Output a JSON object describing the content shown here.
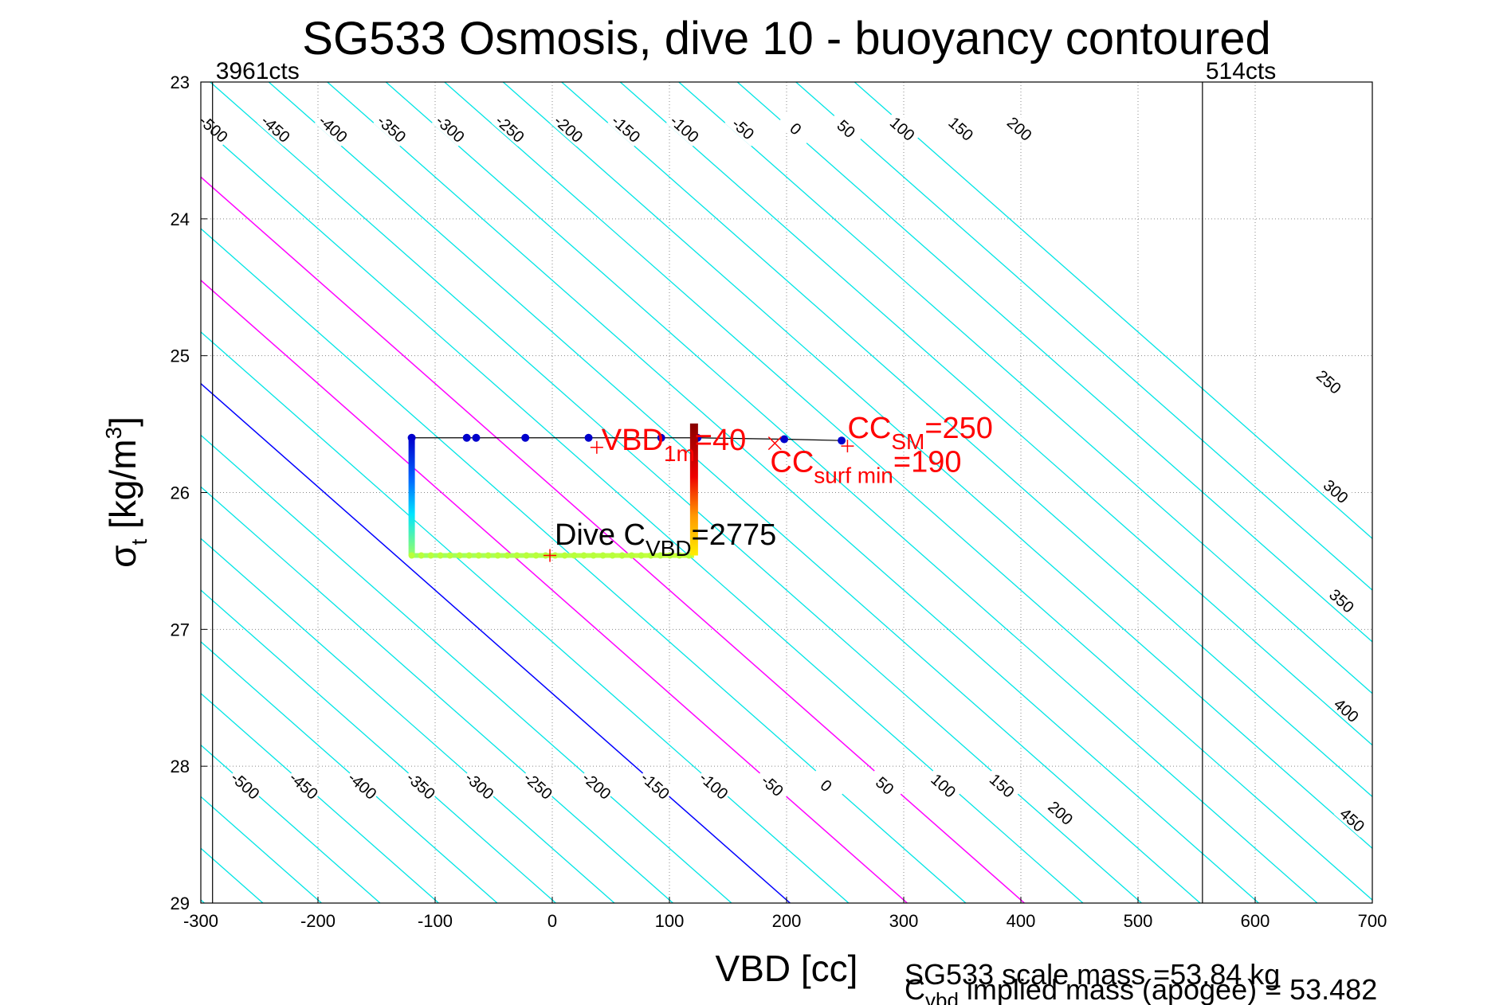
{
  "chart_data": {
    "type": "line",
    "title": "SG533 Osmosis, dive 10 - buoyancy contoured",
    "xlabel": "VBD [cc]",
    "ylabel": {
      "main": "σ",
      "sub": "t",
      "rest": " [kg/m",
      "sup": "3",
      "close": "]"
    },
    "xlim": [
      -300,
      700
    ],
    "ylim": [
      23,
      29
    ],
    "y_reversed": true,
    "grid": true,
    "x_ticks": [
      -300,
      -200,
      -100,
      0,
      100,
      200,
      300,
      400,
      500,
      600,
      700
    ],
    "y_ticks": [
      23,
      24,
      25,
      26,
      27,
      28,
      29
    ],
    "count_markers": [
      {
        "x": -290,
        "label": "3961cts"
      },
      {
        "x": 555,
        "label": "514cts"
      }
    ],
    "contours": {
      "slope_cc_per_sigma": 132.5,
      "zero_vbd_at_sigma_29": 203,
      "levels": [
        -500,
        -450,
        -400,
        -350,
        -300,
        -250,
        -200,
        -150,
        -100,
        -50,
        0,
        50,
        100,
        150,
        200,
        250,
        300,
        350,
        400,
        450
      ],
      "color_default": "#00e5e5",
      "color_zero": "#0000ff",
      "color_magenta": "#ff00ff",
      "magenta_levels": [
        100,
        200
      ],
      "top_labels": [
        {
          "level": -500,
          "vbd": -290
        },
        {
          "level": -450,
          "vbd": -237
        },
        {
          "level": -400,
          "vbd": -188
        },
        {
          "level": -350,
          "vbd": -138
        },
        {
          "level": -300,
          "vbd": -88
        },
        {
          "level": -250,
          "vbd": -37
        },
        {
          "level": -200,
          "vbd": 13
        },
        {
          "level": -150,
          "vbd": 62
        },
        {
          "level": -100,
          "vbd": 112
        },
        {
          "level": -50,
          "vbd": 162
        },
        {
          "level": 0,
          "vbd": 207
        },
        {
          "level": 50,
          "vbd": 250
        },
        {
          "level": 100,
          "vbd": 298
        },
        {
          "level": 150,
          "vbd": 348
        },
        {
          "level": 200,
          "vbd": 398
        }
      ],
      "top_sigma": 23.35,
      "bottom_labels": [
        {
          "level": -500,
          "vbd": -263
        },
        {
          "level": -450,
          "vbd": -213
        },
        {
          "level": -400,
          "vbd": -163
        },
        {
          "level": -350,
          "vbd": -113
        },
        {
          "level": -300,
          "vbd": -63
        },
        {
          "level": -250,
          "vbd": -13
        },
        {
          "level": -200,
          "vbd": 37
        },
        {
          "level": -150,
          "vbd": 87
        },
        {
          "level": -100,
          "vbd": 137
        },
        {
          "level": -50,
          "vbd": 187
        },
        {
          "level": 0,
          "vbd": 233
        },
        {
          "level": 50,
          "vbd": 283
        },
        {
          "level": 100,
          "vbd": 333
        },
        {
          "level": 150,
          "vbd": 383
        }
      ],
      "bottom_sigma": 28.15,
      "extra_labels": [
        {
          "level": 200,
          "vbd": 433,
          "sigma": 28.35
        },
        {
          "level": 250,
          "vbd": 662,
          "sigma": 25.2
        },
        {
          "level": 300,
          "vbd": 668,
          "sigma": 26.0
        },
        {
          "level": 350,
          "vbd": 673,
          "sigma": 26.8
        },
        {
          "level": 400,
          "vbd": 677,
          "sigma": 27.6
        },
        {
          "level": 450,
          "vbd": 682,
          "sigma": 28.4
        }
      ]
    },
    "series": [
      {
        "name": "surface",
        "color": "#000000",
        "points": [
          [
            -120,
            25.6
          ],
          [
            -73,
            25.6
          ],
          [
            -65,
            25.6
          ],
          [
            -23,
            25.6
          ],
          [
            31,
            25.6
          ],
          [
            93,
            25.6
          ],
          [
            124,
            25.6
          ],
          [
            198,
            25.61
          ],
          [
            247,
            25.62
          ]
        ],
        "marker_color": "#0000cc"
      },
      {
        "name": "descent",
        "color": "#000000",
        "points": [
          [
            -120,
            25.6
          ],
          [
            -120,
            26.46
          ],
          [
            121,
            26.46
          ],
          [
            121,
            25.6
          ]
        ],
        "gradient": true
      }
    ],
    "markers": [
      {
        "x": 38,
        "y": 25.67,
        "symbol": "+",
        "color": "#ff0000"
      },
      {
        "x": 252,
        "y": 25.66,
        "symbol": "+",
        "color": "#ff0000"
      },
      {
        "x": 190,
        "y": 25.64,
        "symbol": "x",
        "color": "#ff0000"
      },
      {
        "x": -2,
        "y": 26.46,
        "symbol": "+",
        "color": "#ff0000"
      }
    ],
    "annotations": [
      {
        "main": "VBD",
        "sub": "1m",
        "rest": "=40",
        "x": 42,
        "y": 25.69,
        "color": "#ff0000"
      },
      {
        "main": "CC",
        "sub": "SM",
        "rest": "=250",
        "x": 252,
        "y": 25.6,
        "color": "#ff0000"
      },
      {
        "main": "CC",
        "sub": "surf min",
        "rest": "=190",
        "x": 186,
        "y": 25.85,
        "color": "#ff0000"
      },
      {
        "main": "Dive C",
        "sub": "VBD",
        "rest": "=2775",
        "x": 2,
        "y": 26.38,
        "color": "#000000"
      }
    ]
  },
  "footer": {
    "line1": "SG533 scale mass =53.84 kg",
    "line2": {
      "main": "C",
      "sub": "vbd",
      "rest": " implied mass (apogee) = 53.482"
    }
  }
}
